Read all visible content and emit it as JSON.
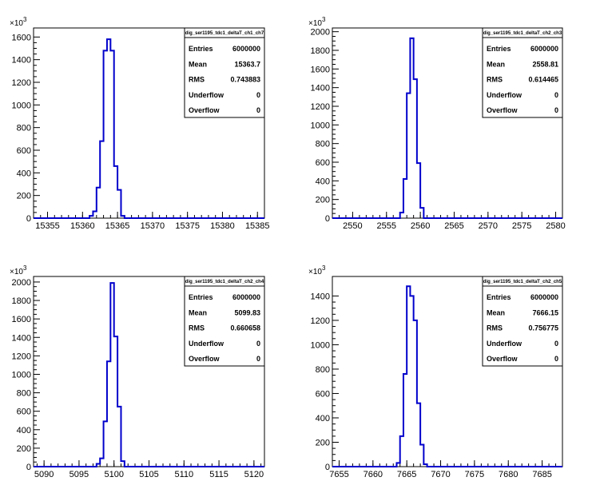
{
  "exponent_label": "×10",
  "exponent_power": "3",
  "stat_labels": {
    "entries": "Entries",
    "mean": "Mean",
    "rms": "RMS",
    "underflow": "Underflow",
    "overflow": "Overflow"
  },
  "colors": {
    "histogram": "#0000cc",
    "axis": "#000000",
    "background": "#ffffff"
  },
  "chart_data": [
    {
      "type": "histogram",
      "title": "dig_ser1195_tdc1_deltaT_ch1_ch7",
      "xlim": [
        15353,
        15386
      ],
      "ylim": [
        0,
        1680
      ],
      "x_ticks": [
        15355,
        15360,
        15365,
        15370,
        15375,
        15380,
        15385
      ],
      "y_ticks": [
        0,
        200,
        400,
        600,
        800,
        1000,
        1200,
        1400,
        1600
      ],
      "y_tick_labels": [
        "0",
        "200",
        "400",
        "600",
        "800",
        "1000",
        "1200",
        "1400",
        "1600"
      ],
      "bin_width": 0.5,
      "bins": [
        [
          15360.5,
          0
        ],
        [
          15361,
          20
        ],
        [
          15361.5,
          60
        ],
        [
          15362,
          270
        ],
        [
          15362.5,
          680
        ],
        [
          15363,
          1480
        ],
        [
          15363.5,
          1580
        ],
        [
          15364,
          1480
        ],
        [
          15364.5,
          460
        ],
        [
          15365,
          250
        ],
        [
          15365.5,
          20
        ],
        [
          15366,
          0
        ]
      ],
      "stats": {
        "entries": "6000000",
        "mean": "15363.7",
        "rms": "0.743883",
        "underflow": "0",
        "overflow": "0"
      }
    },
    {
      "type": "histogram",
      "title": "dig_ser1195_tdc1_deltaT_ch2_ch3",
      "xlim": [
        2547,
        2581
      ],
      "ylim": [
        0,
        2040
      ],
      "x_ticks": [
        2550,
        2555,
        2560,
        2565,
        2570,
        2575,
        2580
      ],
      "y_ticks": [
        0,
        200,
        400,
        600,
        800,
        1000,
        1200,
        1400,
        1600,
        1800,
        2000
      ],
      "y_tick_labels": [
        "0",
        "200",
        "400",
        "600",
        "800",
        "1000",
        "1200",
        "1400",
        "1600",
        "1800",
        "2000"
      ],
      "bin_width": 0.5,
      "bins": [
        [
          2556.5,
          0
        ],
        [
          2557,
          60
        ],
        [
          2557.5,
          420
        ],
        [
          2558,
          1340
        ],
        [
          2558.5,
          1930
        ],
        [
          2559,
          1490
        ],
        [
          2559.5,
          590
        ],
        [
          2560,
          110
        ],
        [
          2560.5,
          0
        ]
      ],
      "stats": {
        "entries": "6000000",
        "mean": "2558.81",
        "rms": "0.614465",
        "underflow": "0",
        "overflow": "0"
      }
    },
    {
      "type": "histogram",
      "title": "dig_ser1195_tdc1_deltaT_ch2_ch4",
      "xlim": [
        5088.5,
        5121.5
      ],
      "ylim": [
        0,
        2060
      ],
      "x_ticks": [
        5090,
        5095,
        5100,
        5105,
        5110,
        5115,
        5120
      ],
      "y_ticks": [
        0,
        200,
        400,
        600,
        800,
        1000,
        1200,
        1400,
        1600,
        1800,
        2000
      ],
      "y_tick_labels": [
        "0",
        "200",
        "400",
        "600",
        "800",
        "1000",
        "1200",
        "1400",
        "1600",
        "1800",
        "2000"
      ],
      "bin_width": 0.5,
      "bins": [
        [
          5097,
          0
        ],
        [
          5097.5,
          30
        ],
        [
          5098,
          90
        ],
        [
          5098.5,
          490
        ],
        [
          5099,
          1140
        ],
        [
          5099.5,
          1990
        ],
        [
          5100,
          1410
        ],
        [
          5100.5,
          650
        ],
        [
          5101,
          60
        ],
        [
          5101.5,
          0
        ]
      ],
      "stats": {
        "entries": "6000000",
        "mean": "5099.83",
        "rms": "0.660658",
        "underflow": "0",
        "overflow": "0"
      }
    },
    {
      "type": "histogram",
      "title": "dig_ser1195_tdc1_deltaT_ch2_ch5",
      "xlim": [
        7654,
        7688
      ],
      "ylim": [
        0,
        1560
      ],
      "x_ticks": [
        7655,
        7660,
        7665,
        7670,
        7675,
        7680,
        7685
      ],
      "y_ticks": [
        0,
        200,
        400,
        600,
        800,
        1000,
        1200,
        1400
      ],
      "y_tick_labels": [
        "0",
        "200",
        "400",
        "600",
        "800",
        "1000",
        "1200",
        "1400"
      ],
      "bin_width": 0.5,
      "bins": [
        [
          7663,
          0
        ],
        [
          7663.5,
          30
        ],
        [
          7664,
          250
        ],
        [
          7664.5,
          760
        ],
        [
          7665,
          1480
        ],
        [
          7665.5,
          1400
        ],
        [
          7666,
          1200
        ],
        [
          7666.5,
          520
        ],
        [
          7667,
          180
        ],
        [
          7667.5,
          20
        ],
        [
          7668,
          0
        ]
      ],
      "stats": {
        "entries": "6000000",
        "mean": "7666.15",
        "rms": "0.756775",
        "underflow": "0",
        "overflow": "0"
      }
    }
  ]
}
